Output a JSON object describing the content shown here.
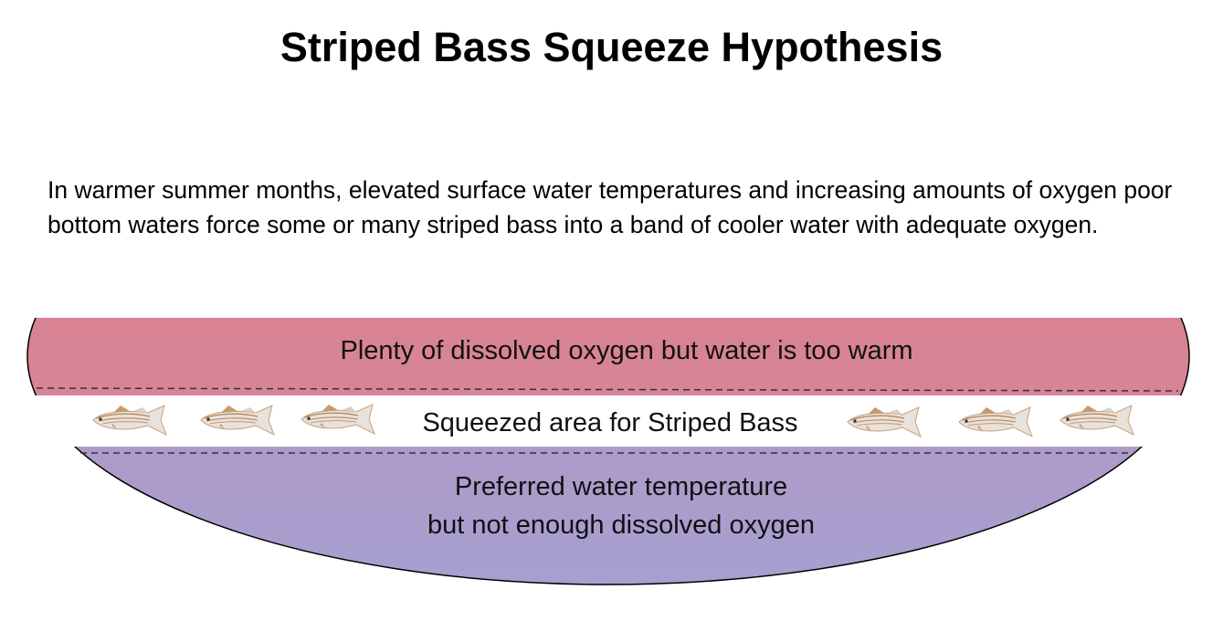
{
  "title": "Striped Bass Squeeze Hypothesis",
  "intro": "In warmer summer months, elevated surface water temperatures and increasing amounts of oxygen poor bottom waters force some or many striped bass into a band of cooler water with adequate oxygen.",
  "layers": {
    "top": {
      "label": "Plenty of dissolved oxygen but water is too warm",
      "colors": [
        "#e07f88",
        "#cf88a0"
      ]
    },
    "middle": {
      "label": "Squeezed area for Striped Bass",
      "fish_left": 3,
      "fish_right": 3
    },
    "bottom": {
      "line1": "Preferred water temperature",
      "line2": "but not enough dissolved oxygen",
      "colors": [
        "#bf8db8",
        "#a6a0d0"
      ]
    }
  },
  "icons": {
    "fish": "striped-bass-icon"
  }
}
